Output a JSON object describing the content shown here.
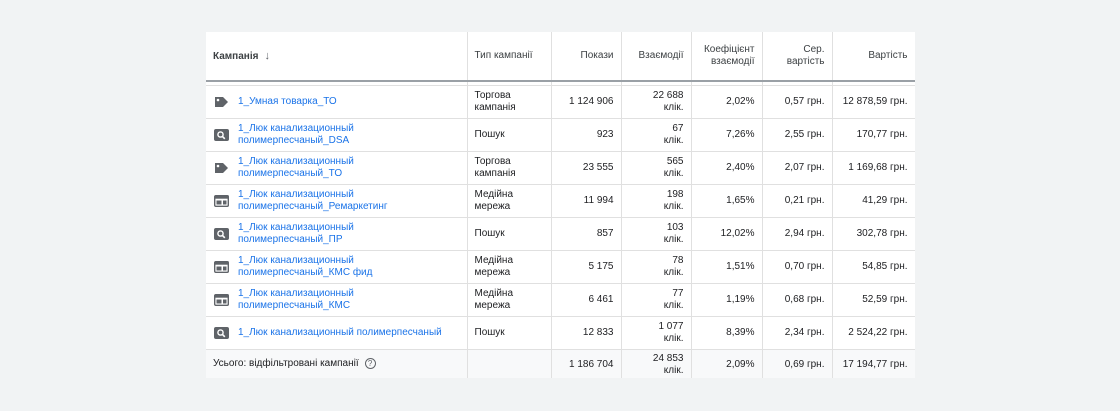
{
  "headers": {
    "campaign": "Кампанія",
    "sort_arrow": "↓",
    "type": "Тип кампанії",
    "impressions": "Покази",
    "interactions": "Взаємодії",
    "interaction_rate_l1": "Коефіцієнт",
    "interaction_rate_l2": "взаємодії",
    "avg_cost_l1": "Сер.",
    "avg_cost_l2": "вартість",
    "cost": "Вартість"
  },
  "rows": [
    {
      "icon": "shopping-tag-icon",
      "name_l1": "1_Умная товарка_ТО",
      "name_l2": "",
      "type_l1": "Торгова",
      "type_l2": "кампанія",
      "impressions": "1 124 906",
      "interactions_l1": "22 688",
      "interactions_l2": "клік.",
      "rate": "2,02%",
      "avg_cost": "0,57 грн.",
      "cost": "12 878,59 грн."
    },
    {
      "icon": "search-icon",
      "name_l1": "1_Люк канализационный",
      "name_l2": "полимерпесчаный_DSA",
      "type_l1": "Пошук",
      "type_l2": "",
      "impressions": "923",
      "interactions_l1": "67",
      "interactions_l2": "клік.",
      "rate": "7,26%",
      "avg_cost": "2,55 грн.",
      "cost": "170,77 грн."
    },
    {
      "icon": "shopping-tag-icon",
      "name_l1": "1_Люк канализационный",
      "name_l2": "полимерпесчаный_ТО",
      "type_l1": "Торгова",
      "type_l2": "кампанія",
      "impressions": "23 555",
      "interactions_l1": "565",
      "interactions_l2": "клік.",
      "rate": "2,40%",
      "avg_cost": "2,07 грн.",
      "cost": "1 169,68 грн."
    },
    {
      "icon": "display-network-icon",
      "name_l1": "1_Люк канализационный",
      "name_l2": "полимерпесчаный_Ремаркетинг",
      "type_l1": "Медійна",
      "type_l2": "мережа",
      "impressions": "11 994",
      "interactions_l1": "198",
      "interactions_l2": "клік.",
      "rate": "1,65%",
      "avg_cost": "0,21 грн.",
      "cost": "41,29 грн."
    },
    {
      "icon": "search-icon",
      "name_l1": "1_Люк канализационный",
      "name_l2": "полимерпесчаный_ПР",
      "type_l1": "Пошук",
      "type_l2": "",
      "impressions": "857",
      "interactions_l1": "103",
      "interactions_l2": "клік.",
      "rate": "12,02%",
      "avg_cost": "2,94 грн.",
      "cost": "302,78 грн."
    },
    {
      "icon": "display-network-icon",
      "name_l1": "1_Люк канализационный",
      "name_l2": "полимерпесчаный_КМС фид",
      "type_l1": "Медійна",
      "type_l2": "мережа",
      "impressions": "5 175",
      "interactions_l1": "78",
      "interactions_l2": "клік.",
      "rate": "1,51%",
      "avg_cost": "0,70 грн.",
      "cost": "54,85 грн."
    },
    {
      "icon": "display-network-icon",
      "name_l1": "1_Люк канализационный",
      "name_l2": "полимерпесчаный_КМС",
      "type_l1": "Медійна",
      "type_l2": "мережа",
      "impressions": "6 461",
      "interactions_l1": "77",
      "interactions_l2": "клік.",
      "rate": "1,19%",
      "avg_cost": "0,68 грн.",
      "cost": "52,59 грн."
    },
    {
      "icon": "search-icon",
      "name_l1": "1_Люк канализационный полимерпесчаный",
      "name_l2": "",
      "type_l1": "Пошук",
      "type_l2": "",
      "impressions": "12 833",
      "interactions_l1": "1 077",
      "interactions_l2": "клік.",
      "rate": "8,39%",
      "avg_cost": "2,34 грн.",
      "cost": "2 524,22 грн."
    }
  ],
  "total": {
    "label": "Усього: відфільтровані кампанії",
    "help_glyph": "?",
    "impressions": "1 186 704",
    "interactions_l1": "24 853",
    "interactions_l2": "клік.",
    "rate": "2,09%",
    "avg_cost": "0,69 грн.",
    "cost": "17 194,77 грн."
  },
  "colors": {
    "link": "#1a73e8",
    "icon": "#5f6368"
  }
}
